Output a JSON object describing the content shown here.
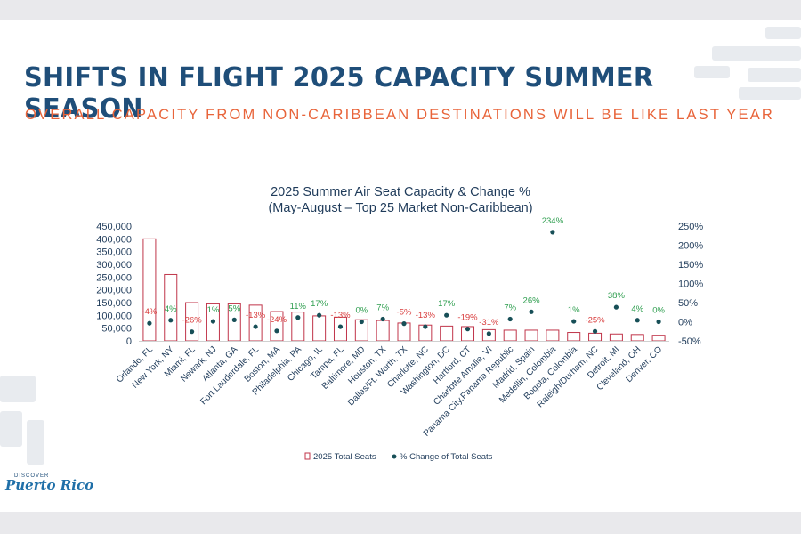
{
  "slide": {
    "title": "SHIFTS IN FLIGHT 2025 CAPACITY SUMMER SEASON",
    "subtitle": "OVERALL CAPACITY FROM NON-CARIBBEAN DESTINATIONS WILL BE LIKE LAST YEAR",
    "logo_small": "DISCOVER",
    "logo_big": "Puerto Rico"
  },
  "colors": {
    "bar": "#c0354a",
    "dot": "#174f57",
    "pos": "#2e9e4f",
    "neg": "#d83b3b",
    "axis": "#1f3b5a"
  },
  "chart_data": {
    "type": "bar",
    "title": "2025 Summer Air Seat Capacity & Change %",
    "subtitle": "(May-August – Top 25 Market Non-Caribbean)",
    "categories": [
      "Orlando, FL",
      "New York, NY",
      "Miami, FL",
      "Newark, NJ",
      "Atlanta, GA",
      "Fort Lauderdale, FL",
      "Boston, MA",
      "Philadelphia, PA",
      "Chicago, IL",
      "Tampa, FL",
      "Baltimore, MD",
      "Houston, TX",
      "Dallas/Ft. Worth, TX",
      "Charlotte, NC",
      "Washington, DC",
      "Hartford, CT",
      "Charlotte Amalie, VI",
      "Panama City,Panama Republic",
      "Madrid, Spain",
      "Medellin, Colombia",
      "Bogota, Colombia",
      "Raleigh/Durham, NC",
      "Detroit, MI",
      "Cleveland, OH",
      "Denver, CO"
    ],
    "series": [
      {
        "name": "2025 Total Seats",
        "axis": "left",
        "kind": "bar",
        "values": [
          400000,
          260000,
          150000,
          145000,
          145000,
          140000,
          115000,
          113000,
          98000,
          93000,
          83000,
          80000,
          70000,
          62000,
          58000,
          56000,
          44000,
          42000,
          42000,
          42000,
          33000,
          30000,
          27000,
          25000,
          22000
        ]
      },
      {
        "name": "% Change of Total Seats",
        "axis": "right",
        "kind": "scatter",
        "values": [
          -4,
          4,
          -26,
          1,
          5,
          -13,
          -24,
          11,
          17,
          -13,
          0,
          7,
          -5,
          -13,
          17,
          -19,
          -31,
          7,
          26,
          234,
          1,
          -25,
          38,
          4,
          0
        ]
      }
    ],
    "labels": [
      "-4%",
      "4%",
      "-26%",
      "1%",
      "5%",
      "-13%",
      "-24%",
      "11%",
      "17%",
      "-13%",
      "0%",
      "7%",
      "-5%",
      "-13%",
      "17%",
      "-19%",
      "-31%",
      "7%",
      "26%",
      "234%",
      "1%",
      "-25%",
      "38%",
      "4%",
      "0%"
    ],
    "y_left": {
      "min": 0,
      "max": 450000,
      "ticks": [
        "0",
        "50,000",
        "100,000",
        "150,000",
        "200,000",
        "250,000",
        "300,000",
        "350,000",
        "400,000",
        "450,000"
      ]
    },
    "y_right": {
      "min": -50,
      "max": 250,
      "ticks": [
        "-50%",
        "0%",
        "50%",
        "100%",
        "150%",
        "200%",
        "250%"
      ]
    },
    "legend": {
      "position": "bottom"
    },
    "grid": false
  }
}
